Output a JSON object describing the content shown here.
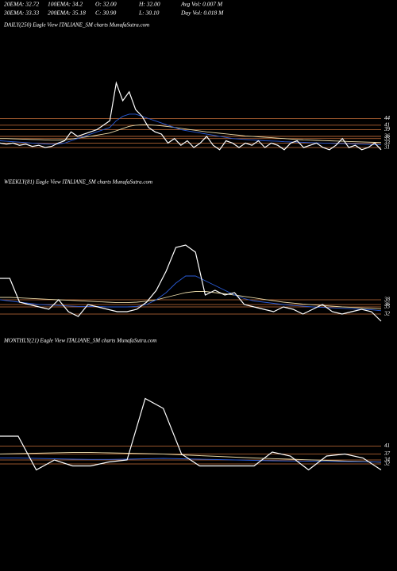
{
  "header": {
    "stats": [
      "20EMA: 32.72",
      "100EMA: 34.2",
      "O: 32.00",
      "H: 32.00",
      "Avg Vol: 0.007 M",
      "30EMA: 33.33",
      "200EMA: 35.18",
      "C: 30.90",
      "L: 30.10",
      "Day Vol: 0.018 M"
    ]
  },
  "chart_data": [
    {
      "type": "line",
      "title": "DAILY(250) Eagle   View  ITALIANE_SM charts MunafaSutra.com",
      "ylim": [
        26,
        83
      ],
      "yticks": [
        31,
        33,
        35,
        36,
        39,
        41,
        44
      ],
      "tick_color": "#c8703a",
      "series": [
        {
          "name": "price",
          "color": "#ffffff",
          "values": [
            33,
            32.5,
            33,
            32,
            32.5,
            31.5,
            32,
            31,
            31.5,
            33,
            34,
            38,
            36,
            37,
            38,
            39,
            41,
            43,
            60,
            52,
            56,
            48,
            45,
            40,
            38,
            37,
            33,
            35,
            32,
            34,
            31,
            33,
            36,
            32,
            30,
            34,
            33,
            31,
            33,
            32,
            34,
            31,
            33,
            32,
            30,
            33,
            34,
            31,
            32,
            33,
            31,
            30,
            32,
            35,
            31,
            32,
            30,
            31,
            33,
            30
          ]
        },
        {
          "name": "ema-fast",
          "color": "#2a5bd7",
          "values": [
            34,
            33.8,
            33.6,
            33.4,
            33.2,
            33,
            32.8,
            32.6,
            32.5,
            32.6,
            33,
            34,
            35,
            36,
            37,
            38,
            39,
            40,
            43,
            45,
            46,
            46,
            45,
            44,
            43,
            42,
            41,
            40,
            39,
            38.5,
            38,
            37.5,
            37,
            36.5,
            36,
            35.5,
            35,
            34.8,
            34.6,
            34.4,
            34.2,
            34,
            33.9,
            33.8,
            33.6,
            33.5,
            33.4,
            33.3,
            33.2,
            33.1,
            33,
            32.9,
            32.8,
            32.8,
            32.7,
            32.6,
            32.5,
            32.4,
            32.3,
            32.2
          ]
        },
        {
          "name": "ema-slow",
          "color": "#e8d9a8",
          "values": [
            35,
            35,
            34.9,
            34.8,
            34.7,
            34.6,
            34.5,
            34.4,
            34.3,
            34.3,
            34.4,
            34.8,
            35.2,
            35.6,
            36,
            36.5,
            37,
            37.5,
            38.5,
            39.5,
            40.5,
            41,
            41.2,
            41.2,
            41,
            40.7,
            40.4,
            40,
            39.6,
            39.2,
            38.8,
            38.4,
            38,
            37.7,
            37.4,
            37.1,
            36.8,
            36.5,
            36.2,
            36,
            35.8,
            35.6,
            35.4,
            35.2,
            35,
            34.8,
            34.6,
            34.4,
            34.3,
            34.2,
            34.1,
            34,
            33.9,
            33.8,
            33.7,
            33.6,
            33.5,
            33.4,
            33.3,
            33.2
          ]
        }
      ]
    },
    {
      "type": "line",
      "title": "WEEKLY(81) Eagle   View  ITALIANE_SM charts MunafaSutra.com",
      "ylim": [
        29,
        84
      ],
      "yticks": [
        32,
        35,
        36,
        38
      ],
      "tick_color": "#c8703a",
      "series": [
        {
          "name": "price",
          "color": "#ffffff",
          "values": [
            47,
            47,
            37,
            36,
            35,
            34,
            38,
            33,
            31,
            36,
            35,
            34,
            33,
            33,
            34,
            37,
            42,
            50,
            60,
            61,
            58,
            40,
            42,
            40,
            41,
            36,
            35,
            34,
            33,
            35,
            34,
            32,
            34,
            36,
            33,
            32,
            33,
            34,
            33,
            29
          ]
        },
        {
          "name": "ema-fast",
          "color": "#2a5bd7",
          "values": [
            38,
            37.5,
            37,
            36.5,
            36,
            35.8,
            35.6,
            35.4,
            35.2,
            35.2,
            35.2,
            35,
            35,
            35,
            35.2,
            36,
            38,
            41,
            45,
            48,
            48,
            46,
            44,
            42,
            40,
            38.5,
            37.5,
            37,
            36.5,
            36,
            35.6,
            35.3,
            35,
            34.8,
            34.6,
            34.4,
            34.2,
            34,
            33.8,
            33.4
          ]
        },
        {
          "name": "ema-slow",
          "color": "#e8d9a8",
          "values": [
            39,
            39,
            38.8,
            38.6,
            38.4,
            38.2,
            38,
            37.8,
            37.6,
            37.4,
            37.2,
            37,
            36.8,
            36.8,
            37,
            37.4,
            38,
            39,
            40,
            41,
            41.5,
            41.5,
            41,
            40.5,
            40,
            39.4,
            38.8,
            38.2,
            37.6,
            37,
            36.6,
            36.2,
            35.9,
            35.6,
            35.3,
            35,
            34.8,
            34.6,
            34.4,
            34.2
          ]
        }
      ]
    },
    {
      "type": "line",
      "title": "MONTHLY(21) Eagle   View  ITALIANE_SM charts MunafaSutra.com",
      "ylim": [
        26,
        90
      ],
      "yticks": [
        32,
        34,
        37,
        41
      ],
      "tick_color": "#c8703a",
      "series": [
        {
          "name": "price",
          "color": "#ffffff",
          "values": [
            46,
            46,
            29,
            34,
            31,
            31,
            33,
            34,
            65,
            60,
            37,
            31,
            31,
            31,
            31,
            38,
            36,
            29,
            36,
            37,
            35,
            29
          ]
        },
        {
          "name": "ema-fast",
          "color": "#2a5bd7",
          "values": [
            35,
            35,
            34.8,
            34.6,
            34.4,
            34.3,
            34.3,
            34.4,
            34.6,
            34.8,
            34.6,
            34.4,
            34.2,
            34,
            33.8,
            33.6,
            33.5,
            33.4,
            33.3,
            33.2,
            33.1,
            33
          ]
        },
        {
          "name": "ema-slow",
          "color": "#e8d9a8",
          "values": [
            37,
            37.2,
            37.4,
            37.6,
            37.8,
            37.8,
            37.6,
            37.4,
            37.2,
            37,
            36.6,
            36.2,
            35.8,
            35.4,
            35,
            34.7,
            34.4,
            34.1,
            33.8,
            33.5,
            33.2,
            32.9
          ]
        }
      ]
    }
  ]
}
